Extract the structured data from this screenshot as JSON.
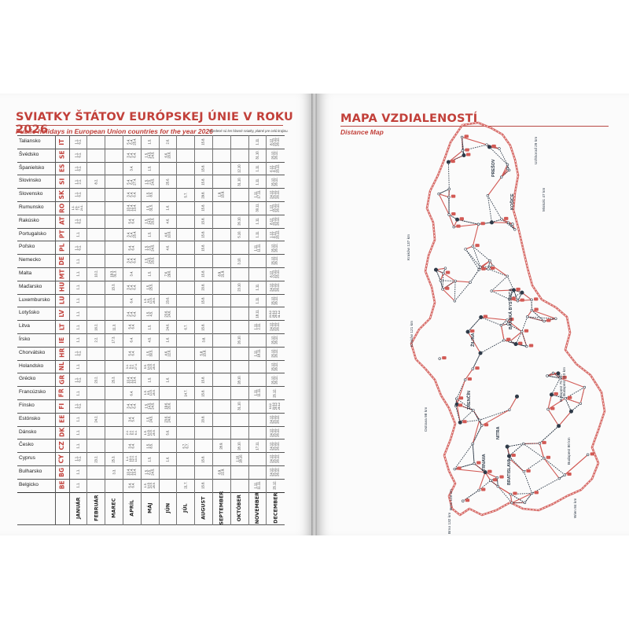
{
  "left_page": {
    "title": "SVIATKY ŠTÁTOV EURÓPSKEJ ÚNIE V ROKU 2026",
    "subtitle": "Public holidays in European Union countries for the year 2026",
    "note": "Uvedené sú len hlavné sviatky, platné pre celú krajinu.",
    "months": [
      "JANUÁR",
      "FEBRUÁR",
      "MAREC",
      "APRÍL",
      "MÁJ",
      "JÚN",
      "JÚL",
      "AUGUST",
      "SEPTEMBER",
      "OKTÓBER",
      "NOVEMBER",
      "DECEMBER"
    ],
    "countries": [
      {
        "name": "Taliansko",
        "code": "IT",
        "cells": [
          "1.1.\n6.1.",
          "",
          "",
          "5.4.\n6.4.\n25.4.",
          "1.5.",
          "2.6.",
          "",
          "15.8.",
          "",
          "",
          "1.11.",
          "8.12.\n25.12.\n26.12."
        ]
      },
      {
        "name": "Švédsko",
        "code": "SE",
        "cells": [
          "1.1.\n6.1.",
          "",
          "",
          "3.4.\n5.4.\n6.4.",
          "1.5.\n14.5.\n24.5.",
          "6.6.\n20.6.",
          "",
          "",
          "",
          "",
          "31.10.",
          "25.12.\n26.12."
        ]
      },
      {
        "name": "Španielsko",
        "code": "ES",
        "cells": [
          "1.1.\n6.1.",
          "",
          "",
          "3.4.",
          "1.5.",
          "",
          "",
          "15.8.",
          "",
          "12.10.",
          "1.11.",
          "6.12.\n8.12.\n25.12."
        ]
      },
      {
        "name": "Slovinsko",
        "code": "SI",
        "cells": [
          "1.1.\n2.1.",
          "8.2.",
          "",
          "5.4.\n6.4.\n27.4.",
          "1.5.\n2.5.\n24.5.",
          "25.6.",
          "",
          "15.8.",
          "",
          "31.10.",
          "1.11.",
          "25.12.\n26.12."
        ]
      },
      {
        "name": "Slovensko",
        "code": "SK",
        "cells": [
          "1.1.\n6.1.",
          "",
          "",
          "3.4.\n5.4.\n6.4.",
          "1.5.\n8.5.",
          "",
          "5.7.",
          "29.8.",
          "1.9.\n15.9.",
          "",
          "1.11.\n17.11.",
          "24.12.\n25.12.\n26.12."
        ]
      },
      {
        "name": "Rumunsko",
        "code": "RO",
        "cells": [
          "1.1.\n2.1.\n7.1.\n24.1.",
          "",
          "",
          "10.4.\n12.4.\n13.4.",
          "1.5.\n31.5.",
          "1.6.",
          "",
          "15.8.",
          "",
          "",
          "30.11.",
          "1.12.\n25.12.\n26.12."
        ]
      },
      {
        "name": "Rakúsko",
        "code": "AT",
        "cells": [
          "1.1.\n6.1.",
          "",
          "",
          "5.4.\n6.4.",
          "1.5.\n14.5.\n25.5.",
          "4.6.",
          "",
          "15.8.",
          "",
          "26.10.",
          "1.11.",
          "8.12.\n25.12.\n26.12."
        ]
      },
      {
        "name": "Portugalsko",
        "code": "PT",
        "cells": [
          "1.1.",
          "",
          "",
          "3.4.\n5.4.\n25.4.",
          "1.5.",
          "4.6.\n10.6.",
          "",
          "15.8.",
          "",
          "5.10.",
          "1.11.",
          "1.12.\n8.12.\n25.12."
        ]
      },
      {
        "name": "Poľsko",
        "code": "PL",
        "cells": [
          "1.1.\n6.1.",
          "",
          "",
          "5.4.\n6.4.",
          "1.5.\n3.5.\n24.5.",
          "4.6.",
          "",
          "15.8.",
          "",
          "",
          "1.11.\n11.11.",
          "25.12.\n26.12."
        ]
      },
      {
        "name": "Nemecko",
        "code": "DE",
        "cells": [
          "1.1.",
          "",
          "",
          "3.4.\n5.4.\n6.4.",
          "1.5.\n14.5.\n25.5.",
          "",
          "",
          "",
          "",
          "3.10.",
          "",
          "25.12.\n26.12."
        ]
      },
      {
        "name": "Malta",
        "code": "MT",
        "cells": [
          "1.1.",
          "10.2.",
          "19.3.\n31.3.",
          "3.4.",
          "1.5.",
          "7.6.\n29.6.",
          "",
          "15.8.",
          "8.9.\n21.9.",
          "",
          "",
          "8.12.\n13.12.\n25.12."
        ]
      },
      {
        "name": "Maďarsko",
        "code": "HU",
        "cells": [
          "1.1.",
          "",
          "15.3.",
          "3.4.\n5.4.\n6.4.",
          "1.5.\n25.5.",
          "",
          "",
          "20.8.",
          "",
          "23.10.",
          "1.11.",
          "24.12.\n25.12.\n26.12."
        ]
      },
      {
        "name": "Luxembursko",
        "code": "LU",
        "cells": [
          "1.1.",
          "",
          "",
          "6.4.",
          "1.5.\n9.5.\n14.5.\n25.5.",
          "23.6.",
          "",
          "15.8.",
          "",
          "",
          "1.11.",
          "25.12.\n26.12."
        ]
      },
      {
        "name": "Lotyšsko",
        "code": "LV",
        "cells": [
          "1.1.",
          "",
          "",
          "3.4.\n5.4.\n6.4.",
          "1.5.\n4.5.",
          "23.6.\n24.6.",
          "",
          "",
          "",
          "",
          "18.11.",
          "24.12.\n25.12.\n26.12.\n31.12."
        ]
      },
      {
        "name": "Litva",
        "code": "LT",
        "cells": [
          "1.1.",
          "16.2.",
          "11.3.",
          "5.4.\n6.4.",
          "1.5.",
          "24.6.",
          "6.7.",
          "15.8.",
          "",
          "",
          "1.11.\n2.11.",
          "24.12.\n25.12.\n26.12."
        ]
      },
      {
        "name": "Írsko",
        "code": "IE",
        "cells": [
          "1.1.",
          "2.2.",
          "17.3.",
          "6.4.",
          "4.5.",
          "1.6.",
          "",
          "3.8.",
          "",
          "26.10.",
          "",
          "25.12.\n26.12."
        ]
      },
      {
        "name": "Chorvátsko",
        "code": "HR",
        "cells": [
          "1.1.\n6.1.",
          "",
          "",
          "5.4.\n6.4.",
          "1.5.\n30.5.",
          "4.6.\n22.6.",
          "",
          "5.8.\n15.8.",
          "",
          "",
          "1.11.\n18.11.",
          "25.12.\n26.12."
        ]
      },
      {
        "name": "Holandsko",
        "code": "NL",
        "cells": [
          "1.1.",
          "",
          "",
          "3.4.\n5.4.\n6.4.\n27.4.",
          "5.5.\n14.5.\n24.5.\n25.5.",
          "",
          "",
          "",
          "",
          "",
          "",
          "25.12.\n26.12."
        ]
      },
      {
        "name": "Grécko",
        "code": "GR",
        "cells": [
          "1.1.\n6.1.",
          "23.2.",
          "25.3.",
          "10.4.\n12.4.\n13.4.",
          "1.5.",
          "1.6.",
          "",
          "15.8.",
          "",
          "28.10.",
          "",
          "25.12.\n26.12."
        ]
      },
      {
        "name": "Francúzsko",
        "code": "FR",
        "cells": [
          "1.1.",
          "",
          "",
          "6.4.",
          "1.5.\n8.5.\n14.5.\n25.5.",
          "",
          "14.7.",
          "15.8.",
          "",
          "",
          "1.11.\n11.11.",
          "25.12."
        ]
      },
      {
        "name": "Fínsko",
        "code": "FI",
        "cells": [
          "1.1.\n6.1.",
          "",
          "",
          "3.4.\n5.4.\n6.4.",
          "1.5.\n14.5.\n24.5.",
          "19.6.\n20.6.",
          "",
          "",
          "",
          "31.10.",
          "",
          "6.12.\n24.12.\n25.12.\n26.12."
        ]
      },
      {
        "name": "Estónsko",
        "code": "EE",
        "cells": [
          "1.1.",
          "24.2.",
          "",
          "3.4.\n5.4.",
          "1.5.\n24.5.",
          "23.6.\n24.6.",
          "",
          "20.8.",
          "",
          "",
          "",
          "24.12.\n25.12.\n26.12."
        ]
      },
      {
        "name": "Dánsko",
        "code": "DK",
        "cells": [
          "1.1.",
          "",
          "",
          "2.4.\n3.4.\n5.4.\n6.4.",
          "1.5.\n14.5.\n24.5.\n25.5.",
          "5.6.",
          "",
          "",
          "",
          "",
          "",
          "24.12.\n25.12.\n26.12."
        ]
      },
      {
        "name": "Česko",
        "code": "CZ",
        "cells": [
          "1.1.",
          "",
          "",
          "3.4.\n6.4.",
          "1.5.\n8.5.",
          "",
          "5.7.\n6.7.",
          "",
          "28.9.",
          "28.10.",
          "17.11.",
          "24.12.\n25.12.\n26.12."
        ]
      },
      {
        "name": "Cyprus",
        "code": "CY",
        "cells": [
          "1.1.\n6.1.",
          "23.2.",
          "25.3.",
          "1.4.\n10.4.\n12.4.\n13.4.",
          "1.5.",
          "1.6.",
          "",
          "15.8.",
          "",
          "1.10.\n28.10.",
          "",
          "24.12.\n25.12.\n26.12."
        ]
      },
      {
        "name": "Bulharsko",
        "code": "BG",
        "cells": [
          "1.1.",
          "",
          "3.3.",
          "10.4.\n12.4.\n13.4.",
          "1.5.\n6.5.\n24.5.",
          "",
          "",
          "",
          "6.9.\n22.9.",
          "",
          "",
          "24.12.\n25.12.\n26.12."
        ]
      },
      {
        "name": "Belgicko",
        "code": "BE",
        "cells": [
          "1.1.",
          "",
          "",
          "5.4.\n6.4.",
          "1.5.\n14.5.\n24.5.\n25.5.",
          "",
          "21.7.",
          "15.8.",
          "",
          "",
          "1.11.\n11.11.",
          "25.12."
        ]
      }
    ]
  },
  "right_page": {
    "title": "MAPA VZDIALENOSTÍ",
    "subtitle": "Distance Map",
    "city_labels": [
      "BANSKÁ BYSTRICA",
      "ŽILINA",
      "TRENČÍN",
      "NITRA",
      "TRNAVA",
      "BRATISLAVA",
      "KOŠICE",
      "PREŠOV"
    ],
    "border_labels": [
      "Kraków 137 km",
      "Kraków 121 km",
      "Budapest 75 km",
      "Budapest 80 km",
      "Budapest 110 km",
      "Wien 84 km",
      "Brno 132 km",
      "Brno 118 km",
      "Ostrava 98 km",
      "Miskolc 47 km",
      "Uzhhorod 29 km"
    ],
    "colors": {
      "accent": "#c2403a",
      "road_red": "#d25a55",
      "road_dark": "#2e3a48"
    }
  },
  "colors": {
    "accent": "#c2403a",
    "page": "#fbfbfb",
    "gutter": "#9a9a9a",
    "grid": "#4a4a4a"
  }
}
